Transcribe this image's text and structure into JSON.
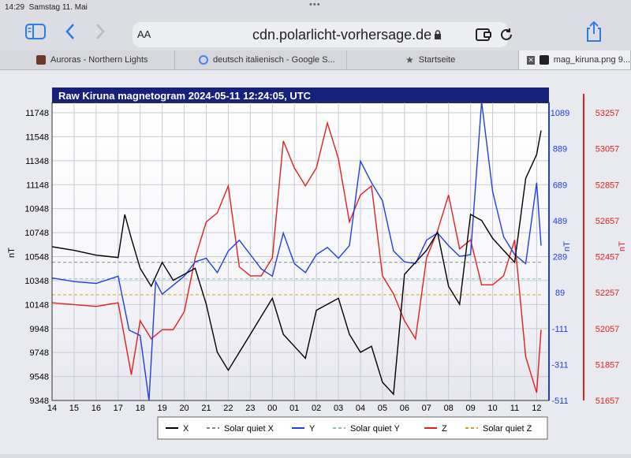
{
  "status": {
    "time": "14:29",
    "date": "Samstag 11. Mai",
    "dots": "•••"
  },
  "toolbar": {
    "url": "cdn.polarlicht-vorhersage.de",
    "aa_label": "AA"
  },
  "tabs": [
    {
      "label": "Auroras - Northern Lights"
    },
    {
      "label": "deutsch italienisch - Google S..."
    },
    {
      "label": "Startseite"
    },
    {
      "label": "mag_kiruna.png 9..."
    }
  ],
  "chart_data": {
    "type": "line",
    "title": "Raw Kiruna magnetogram 2024-05-11 12:24:05, UTC",
    "x_ticks": [
      "14",
      "15",
      "16",
      "17",
      "18",
      "19",
      "20",
      "21",
      "22",
      "23",
      "00",
      "01",
      "02",
      "03",
      "04",
      "05",
      "06",
      "07",
      "08",
      "09",
      "10",
      "11",
      "12"
    ],
    "ylabel_left": "nT",
    "yticks_left": [
      9348,
      9548,
      9748,
      9948,
      10148,
      10348,
      10548,
      10748,
      10948,
      11148,
      11348,
      11548,
      11748
    ],
    "ylabel_blue": "nT",
    "yticks_blue": [
      -511,
      -311,
      -111,
      89,
      289,
      489,
      689,
      889,
      1089
    ],
    "ylabel_red": "nT",
    "yticks_red": [
      51657,
      51857,
      52057,
      52257,
      52457,
      52657,
      52857,
      53057,
      53257
    ],
    "colors": {
      "X": "#000000",
      "Y": "#1f3fe0",
      "Z": "#e02020",
      "solar_quiet_x": "#7a8a80",
      "solar_quiet_y": "#8fbcc4",
      "solar_quiet_z": "#d7a020"
    },
    "series": [
      {
        "name": "X",
        "axis": "left",
        "x": [
          14,
          15,
          16,
          17,
          17.3,
          17.6,
          18,
          18.5,
          19,
          19.5,
          20,
          20.5,
          21,
          21.5,
          22,
          22.5,
          23,
          23.5,
          24,
          24.5,
          25,
          25.5,
          26,
          26.5,
          27,
          27.5,
          28,
          28.5,
          29,
          29.5,
          30,
          30.5,
          31,
          31.5,
          32,
          32.5,
          33,
          33.5,
          34,
          34.5,
          35,
          35.5,
          36,
          36.2
        ],
        "y": [
          10630,
          10600,
          10560,
          10540,
          10900,
          10700,
          10450,
          10300,
          10500,
          10350,
          10400,
          10450,
          10150,
          9750,
          9600,
          9750,
          9900,
          10050,
          10200,
          9900,
          9800,
          9700,
          10100,
          10150,
          10200,
          9900,
          9750,
          9800,
          9500,
          9400,
          10400,
          10500,
          10600,
          10750,
          10300,
          10150,
          10900,
          10850,
          10700,
          10600,
          10500,
          11200,
          11400,
          11600
        ]
      },
      {
        "name": "Y",
        "axis": "blue",
        "x": [
          14,
          15,
          16,
          17,
          17.5,
          18,
          18.4,
          18.7,
          19,
          19.5,
          20,
          20.5,
          21,
          21.5,
          22,
          22.5,
          23,
          23.5,
          24,
          24.5,
          25,
          25.5,
          26,
          26.5,
          27,
          27.5,
          28,
          28.5,
          29,
          29.5,
          30,
          30.5,
          31,
          31.5,
          32,
          32.5,
          33,
          33.5,
          34,
          34.5,
          35,
          35.5,
          36,
          36.2
        ],
        "y": [
          170,
          150,
          140,
          180,
          -120,
          -150,
          -511,
          150,
          80,
          130,
          180,
          260,
          280,
          200,
          320,
          380,
          300,
          220,
          180,
          420,
          250,
          200,
          300,
          340,
          280,
          350,
          820,
          700,
          600,
          320,
          260,
          250,
          380,
          420,
          350,
          290,
          300,
          1150,
          650,
          400,
          300,
          250,
          700,
          350
        ]
      },
      {
        "name": "Z",
        "axis": "red",
        "x": [
          14,
          15,
          16,
          17,
          17.3,
          17.6,
          18,
          18.5,
          19,
          19.5,
          20,
          20.5,
          21,
          21.5,
          22,
          22.5,
          23,
          23.5,
          24,
          24.5,
          25,
          25.5,
          26,
          26.5,
          27,
          27.5,
          28,
          28.5,
          29,
          29.5,
          30,
          30.5,
          31,
          31.5,
          32,
          32.5,
          33,
          33.5,
          34,
          34.5,
          35,
          35.5,
          36,
          36.2
        ],
        "y": [
          52200,
          52190,
          52180,
          52200,
          52000,
          51800,
          52100,
          52000,
          52050,
          52050,
          52150,
          52450,
          52650,
          52700,
          52850,
          52400,
          52350,
          52350,
          52450,
          53100,
          52950,
          52850,
          52950,
          53200,
          53000,
          52650,
          52800,
          52850,
          52350,
          52250,
          52100,
          52000,
          52450,
          52600,
          52800,
          52500,
          52550,
          52300,
          52300,
          52350,
          52550,
          51900,
          51700,
          52050
        ]
      },
      {
        "name": "Solar quiet X",
        "axis": "left",
        "x": [
          14,
          36.2
        ],
        "y": [
          10500,
          10500
        ]
      },
      {
        "name": "Solar quiet Y",
        "axis": "blue",
        "x": [
          14,
          36.2
        ],
        "y": [
          165,
          165
        ]
      },
      {
        "name": "Solar quiet Z",
        "axis": "red",
        "x": [
          14,
          36.2
        ],
        "y": [
          52245,
          52245
        ]
      }
    ],
    "legend": [
      "X",
      "Solar quiet X",
      "Y",
      "Solar quiet Y",
      "Z",
      "Solar quiet Z"
    ],
    "legend_placement": "bottom",
    "grid": true
  }
}
